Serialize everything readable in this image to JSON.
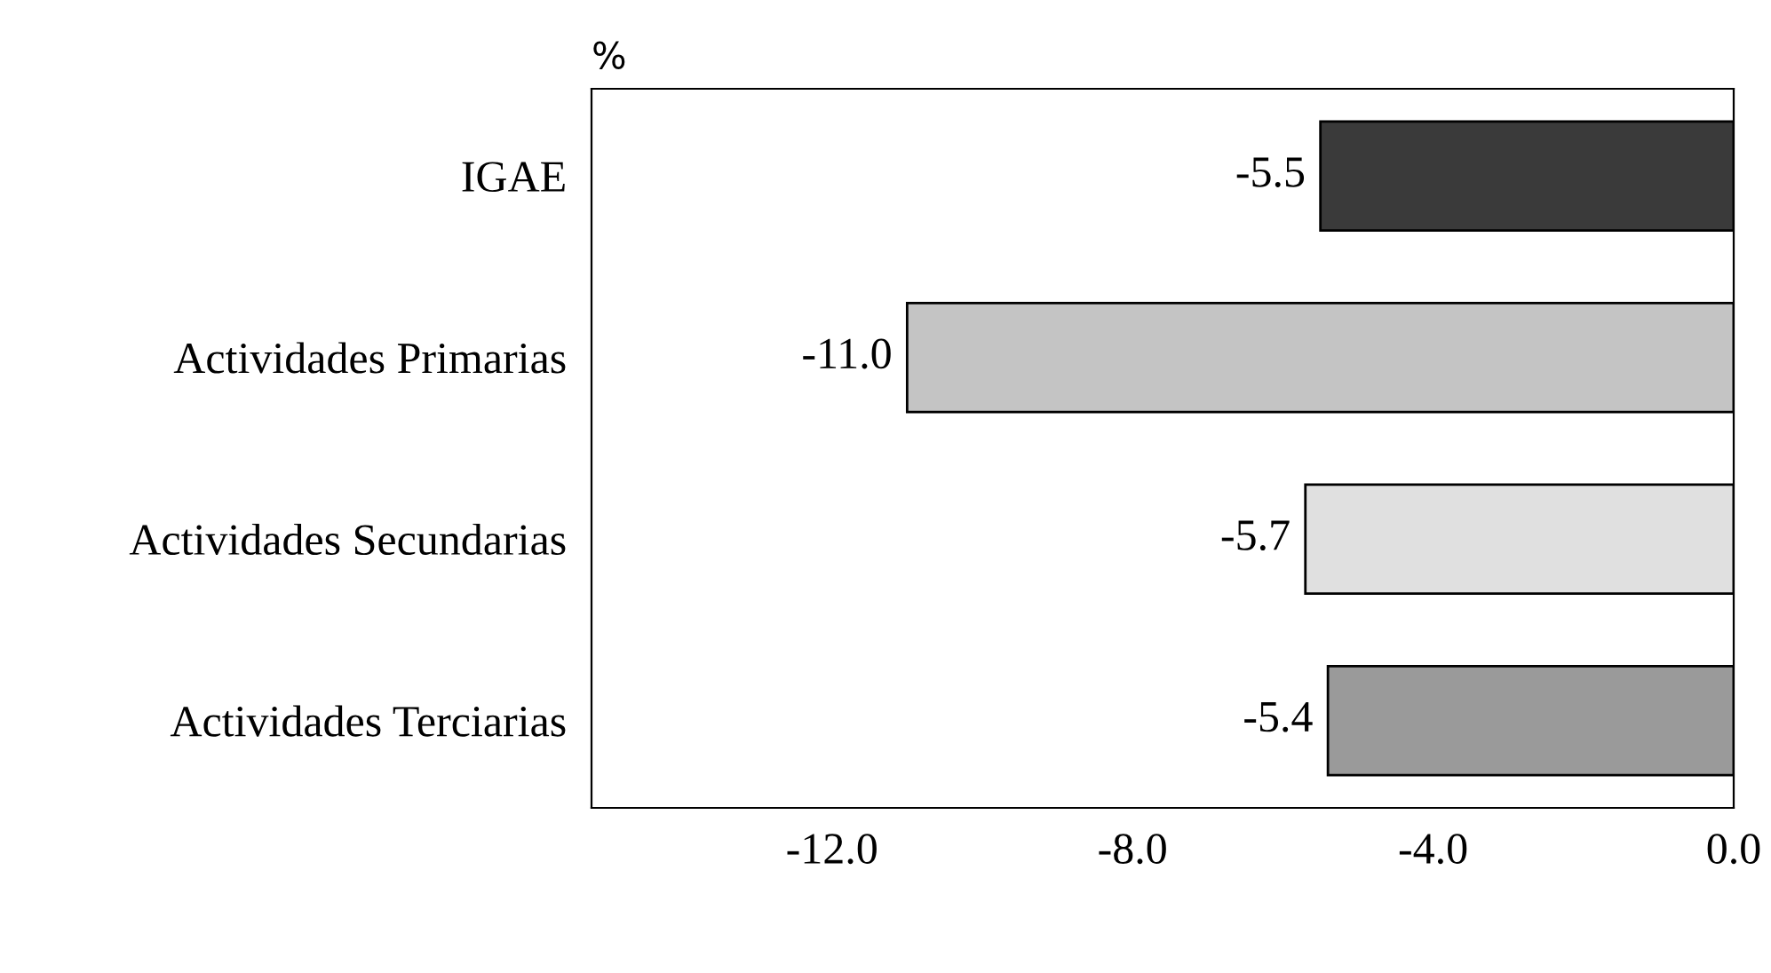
{
  "chart_data": {
    "type": "bar",
    "orientation": "horizontal",
    "categories": [
      "IGAE",
      "Actividades Primarias",
      "Actividades Secundarias",
      "Actividades Terciarias"
    ],
    "values": [
      -5.5,
      -11.0,
      -5.7,
      -5.4
    ],
    "colors": [
      "#3a3a3a",
      "#c4c4c4",
      "#e0e0e0",
      "#9a9a9a"
    ],
    "value_labels": [
      "-5.5",
      "-11.0",
      "-5.7",
      "-5.4"
    ],
    "xlim": [
      -15.2,
      0
    ],
    "xticks": [
      {
        "value": -12,
        "label": "-12.0"
      },
      {
        "value": -8,
        "label": "-8.0"
      },
      {
        "value": -4,
        "label": "-4.0"
      },
      {
        "value": 0,
        "label": "0.0"
      }
    ],
    "annotations": [
      "%"
    ],
    "grid": false,
    "legend": false
  }
}
